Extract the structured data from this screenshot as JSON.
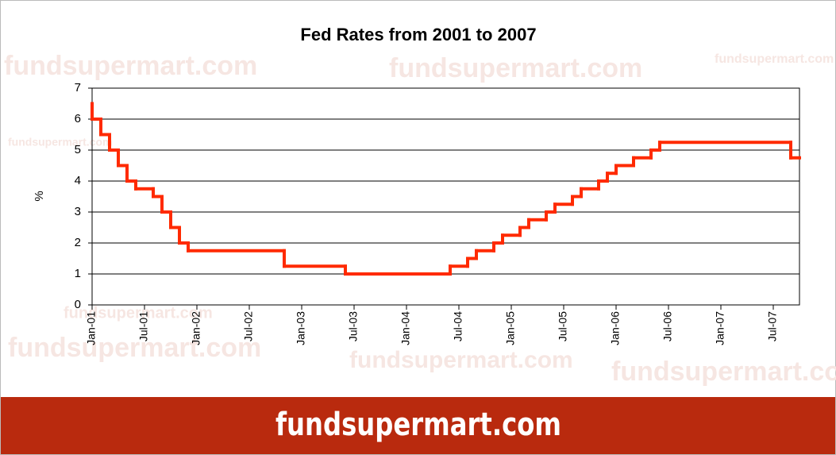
{
  "chart_data": {
    "type": "step-line",
    "title": "Fed Rates from 2001 to 2007",
    "y_label": "%",
    "watermark": "fundsupermart.com",
    "banner": "fundsupermart.com",
    "x": [
      "2001-01",
      "2001-01",
      "2001-02",
      "2001-03",
      "2001-04",
      "2001-05",
      "2001-06",
      "2001-08",
      "2001-09",
      "2001-10",
      "2001-11",
      "2001-12",
      "2002-11",
      "2003-06",
      "2004-06",
      "2004-08",
      "2004-09",
      "2004-11",
      "2004-12",
      "2005-02",
      "2005-03",
      "2005-05",
      "2005-06",
      "2005-08",
      "2005-09",
      "2005-11",
      "2005-12",
      "2006-01",
      "2006-03",
      "2006-05",
      "2006-06",
      "2007-09"
    ],
    "series": [
      {
        "name": "Fed Rate",
        "color": "#ff2a00",
        "values": [
          6.5,
          6.0,
          5.5,
          5.0,
          4.5,
          4.0,
          3.75,
          3.5,
          3.0,
          2.5,
          2.0,
          1.75,
          1.25,
          1.0,
          1.25,
          1.5,
          1.75,
          2.0,
          2.25,
          2.5,
          2.75,
          3.0,
          3.25,
          3.5,
          3.75,
          4.0,
          4.25,
          4.5,
          4.75,
          5.0,
          5.25,
          4.75
        ]
      }
    ],
    "xlim": [
      "2001-01",
      "2007-10"
    ],
    "xticks": [
      {
        "value": "2001-01",
        "label": "Jan-01"
      },
      {
        "value": "2001-07",
        "label": "Jul-01"
      },
      {
        "value": "2002-01",
        "label": "Jan-02"
      },
      {
        "value": "2002-07",
        "label": "Jul-02"
      },
      {
        "value": "2003-01",
        "label": "Jan-03"
      },
      {
        "value": "2003-07",
        "label": "Jul-03"
      },
      {
        "value": "2004-01",
        "label": "Jan-04"
      },
      {
        "value": "2004-07",
        "label": "Jul-04"
      },
      {
        "value": "2005-01",
        "label": "Jan-05"
      },
      {
        "value": "2005-07",
        "label": "Jul-05"
      },
      {
        "value": "2006-01",
        "label": "Jan-06"
      },
      {
        "value": "2006-07",
        "label": "Jul-06"
      },
      {
        "value": "2007-01",
        "label": "Jan-07"
      },
      {
        "value": "2007-07",
        "label": "Jul-07"
      }
    ],
    "ylim": [
      0,
      7
    ],
    "yticks": [
      0,
      1,
      2,
      3,
      4,
      5,
      6,
      7
    ],
    "grid": true
  }
}
